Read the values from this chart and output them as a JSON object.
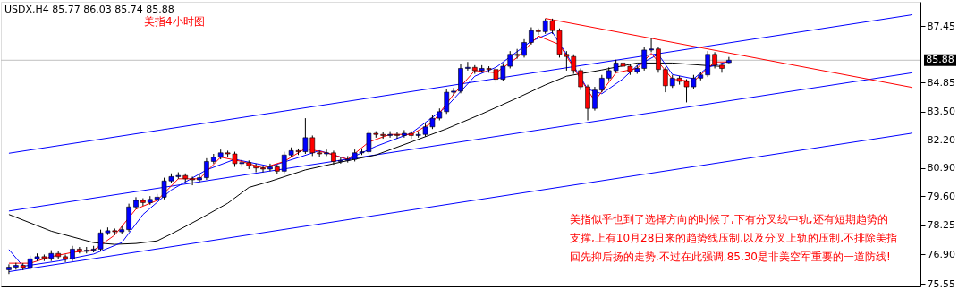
{
  "chart_data": {
    "type": "candlestick",
    "title": "USDX,H4  85.77 86.03 85.74 85.88",
    "subtitle": "美指4小时图",
    "annotations": [
      "美指似乎也到了选择方向的时候了,下有分叉线中轨,还有短期趋势的支撑,上有10月28日来的趋势线压制,以及分叉上轨的压制,不排除美指回先抑后扬的走势,不过在此强调,85.30是非美空军重要的一道防线!"
    ],
    "categories": [
      null,
      null,
      null,
      null,
      null,
      null,
      null,
      null,
      null,
      null,
      null,
      null,
      null,
      null,
      null,
      null,
      null,
      null,
      null,
      null,
      null,
      null,
      null,
      null,
      null,
      null,
      null,
      null,
      null,
      null,
      null,
      null,
      null,
      null,
      null,
      null,
      null,
      null,
      null,
      null,
      null,
      null,
      null,
      null,
      null,
      null,
      null,
      null,
      null,
      null,
      null,
      null,
      null,
      null,
      null,
      null,
      null,
      null,
      null,
      null,
      null,
      null,
      null,
      null,
      null,
      null,
      null,
      null,
      null,
      null,
      null,
      null,
      null,
      null,
      null,
      null,
      null,
      null,
      null,
      null,
      null,
      null,
      null,
      null,
      null,
      null,
      null,
      null,
      null,
      null,
      null,
      null,
      null,
      null,
      null,
      null,
      null,
      null,
      null,
      null,
      null,
      null,
      null,
      null,
      null,
      null,
      null,
      null,
      null,
      null,
      null,
      null,
      null,
      null,
      null,
      null,
      null,
      null,
      null,
      null,
      null,
      null,
      null,
      null,
      null,
      null,
      null,
      null,
      null
    ],
    "ohlc": [
      [
        76.2,
        76.45,
        76.0,
        76.32
      ],
      [
        76.32,
        76.52,
        76.2,
        76.4
      ],
      [
        76.4,
        76.5,
        76.18,
        76.3
      ],
      [
        76.3,
        76.85,
        76.2,
        76.7
      ],
      [
        76.7,
        76.95,
        76.6,
        76.8
      ],
      [
        76.8,
        76.9,
        76.6,
        76.72
      ],
      [
        76.72,
        77.1,
        76.6,
        76.95
      ],
      [
        76.95,
        77.05,
        76.7,
        76.8
      ],
      [
        76.8,
        76.9,
        76.55,
        76.7
      ],
      [
        76.7,
        77.3,
        76.6,
        77.15
      ],
      [
        77.15,
        77.25,
        76.95,
        77.05
      ],
      [
        77.05,
        77.25,
        76.95,
        77.1
      ],
      [
        77.1,
        77.3,
        77.0,
        77.15
      ],
      [
        77.15,
        78.05,
        77.05,
        77.9
      ],
      [
        77.9,
        78.15,
        77.8,
        78.0
      ],
      [
        78.0,
        78.1,
        77.8,
        77.95
      ],
      [
        77.95,
        78.2,
        77.85,
        78.05
      ],
      [
        78.05,
        79.25,
        77.95,
        79.1
      ],
      [
        79.1,
        79.55,
        79.0,
        79.4
      ],
      [
        79.4,
        79.5,
        79.15,
        79.3
      ],
      [
        79.3,
        79.6,
        79.2,
        79.45
      ],
      [
        79.45,
        79.7,
        79.35,
        79.55
      ],
      [
        79.55,
        80.45,
        79.45,
        80.3
      ],
      [
        80.3,
        80.65,
        80.2,
        80.5
      ],
      [
        80.5,
        80.7,
        80.4,
        80.55
      ],
      [
        80.55,
        80.65,
        80.25,
        80.4
      ],
      [
        80.4,
        80.5,
        80.1,
        80.35
      ],
      [
        80.35,
        80.6,
        80.25,
        80.45
      ],
      [
        80.45,
        81.35,
        80.35,
        81.2
      ],
      [
        81.2,
        81.55,
        81.1,
        81.4
      ],
      [
        81.4,
        81.75,
        81.3,
        81.6
      ],
      [
        81.6,
        81.7,
        81.4,
        81.55
      ],
      [
        81.55,
        81.65,
        80.95,
        81.1
      ],
      [
        81.1,
        81.3,
        80.95,
        81.15
      ],
      [
        81.15,
        81.25,
        80.85,
        81.0
      ],
      [
        81.0,
        81.1,
        80.7,
        80.9
      ],
      [
        80.9,
        81.0,
        80.7,
        80.85
      ],
      [
        80.85,
        81.1,
        80.75,
        80.95
      ],
      [
        80.95,
        81.05,
        80.6,
        80.75
      ],
      [
        80.75,
        81.65,
        80.65,
        81.5
      ],
      [
        81.5,
        81.85,
        81.4,
        81.7
      ],
      [
        81.7,
        81.8,
        81.5,
        81.65
      ],
      [
        81.65,
        83.2,
        81.55,
        82.3
      ],
      [
        82.3,
        82.4,
        81.45,
        81.6
      ],
      [
        81.6,
        81.7,
        81.4,
        81.55
      ],
      [
        81.55,
        81.75,
        81.45,
        81.6
      ],
      [
        81.6,
        81.7,
        81.05,
        81.2
      ],
      [
        81.2,
        81.4,
        81.1,
        81.25
      ],
      [
        81.25,
        81.45,
        81.15,
        81.3
      ],
      [
        81.3,
        81.75,
        81.2,
        81.6
      ],
      [
        81.6,
        81.8,
        81.5,
        81.65
      ],
      [
        81.65,
        82.65,
        81.55,
        82.5
      ],
      [
        82.5,
        82.6,
        82.3,
        82.45
      ],
      [
        82.45,
        82.55,
        82.25,
        82.4
      ],
      [
        82.4,
        82.6,
        82.3,
        82.45
      ],
      [
        82.45,
        82.55,
        82.25,
        82.4
      ],
      [
        82.4,
        82.65,
        82.3,
        82.5
      ],
      [
        82.5,
        82.6,
        82.25,
        82.4
      ],
      [
        82.4,
        82.6,
        82.3,
        82.45
      ],
      [
        82.45,
        82.95,
        82.35,
        82.8
      ],
      [
        82.8,
        83.35,
        82.7,
        83.2
      ],
      [
        83.2,
        83.65,
        83.1,
        83.5
      ],
      [
        83.5,
        84.55,
        83.4,
        84.4
      ],
      [
        84.4,
        84.6,
        84.25,
        84.45
      ],
      [
        84.45,
        85.7,
        84.35,
        85.5
      ],
      [
        85.5,
        85.8,
        85.4,
        85.55
      ],
      [
        85.55,
        85.65,
        85.25,
        85.4
      ],
      [
        85.4,
        85.65,
        85.3,
        85.5
      ],
      [
        85.5,
        85.6,
        85.3,
        85.45
      ],
      [
        85.45,
        85.55,
        84.85,
        85.0
      ],
      [
        85.0,
        85.75,
        84.9,
        85.6
      ],
      [
        85.6,
        86.3,
        85.5,
        86.15
      ],
      [
        86.15,
        86.4,
        85.95,
        86.1
      ],
      [
        86.1,
        86.85,
        86.0,
        86.7
      ],
      [
        86.7,
        87.4,
        86.6,
        87.25
      ],
      [
        87.25,
        87.35,
        87.05,
        87.2
      ],
      [
        87.2,
        87.8,
        87.1,
        87.7
      ],
      [
        87.7,
        87.8,
        87.1,
        87.25
      ],
      [
        87.25,
        87.35,
        86.0,
        86.15
      ],
      [
        86.15,
        86.3,
        85.4,
        86.05
      ],
      [
        86.05,
        86.15,
        85.25,
        85.4
      ],
      [
        85.4,
        85.5,
        84.5,
        84.65
      ],
      [
        84.65,
        84.75,
        83.1,
        83.65
      ],
      [
        83.65,
        84.65,
        83.55,
        84.5
      ],
      [
        84.5,
        85.2,
        84.4,
        85.05
      ],
      [
        85.05,
        85.55,
        84.95,
        85.4
      ],
      [
        85.4,
        85.9,
        85.3,
        85.75
      ],
      [
        85.75,
        85.85,
        85.45,
        85.6
      ],
      [
        85.6,
        85.7,
        85.2,
        85.35
      ],
      [
        85.35,
        85.65,
        85.25,
        85.5
      ],
      [
        85.5,
        86.5,
        85.4,
        86.35
      ],
      [
        86.35,
        86.88,
        86.25,
        86.4
      ],
      [
        86.4,
        86.5,
        85.3,
        85.45
      ],
      [
        85.45,
        85.55,
        84.4,
        84.7
      ],
      [
        84.7,
        85.2,
        84.6,
        85.05
      ],
      [
        85.05,
        85.15,
        84.75,
        84.9
      ],
      [
        84.9,
        85.0,
        83.93,
        84.65
      ],
      [
        84.65,
        85.2,
        84.55,
        85.05
      ],
      [
        85.05,
        85.35,
        84.95,
        85.2
      ],
      [
        85.2,
        86.3,
        85.1,
        86.15
      ],
      [
        86.15,
        86.25,
        85.5,
        85.65
      ],
      [
        85.65,
        85.75,
        85.3,
        85.5
      ],
      [
        85.77,
        86.03,
        85.74,
        85.88
      ],
      null,
      null,
      null,
      null,
      null,
      null,
      null,
      null,
      null,
      null,
      null,
      null,
      null,
      null,
      null,
      null,
      null,
      null,
      null,
      null,
      null,
      null,
      null,
      null,
      null,
      null
    ],
    "series": [
      {
        "type": "line",
        "color": "#0000ff",
        "values": [
          81.58,
          null,
          null,
          null,
          null,
          null,
          null,
          null,
          null,
          null,
          null,
          null,
          null,
          null,
          null,
          null,
          null,
          null,
          null,
          null,
          null,
          null,
          null,
          null,
          null,
          null,
          null,
          null,
          null,
          null,
          null,
          null,
          null,
          null,
          null,
          null,
          null,
          null,
          null,
          null,
          null,
          null,
          null,
          null,
          null,
          null,
          null,
          null,
          null,
          null,
          null,
          null,
          null,
          null,
          null,
          null,
          null,
          null,
          null,
          null,
          null,
          null,
          null,
          null,
          null,
          null,
          null,
          null,
          null,
          null,
          null,
          null,
          null,
          null,
          null,
          null,
          null,
          null,
          null,
          null,
          null,
          null,
          null,
          null,
          null,
          null,
          null,
          null,
          null,
          null,
          null,
          null,
          null,
          null,
          null,
          null,
          null,
          null,
          null,
          null,
          null,
          null,
          null,
          null,
          null,
          null,
          null,
          null,
          null,
          null,
          null,
          null,
          null,
          null,
          null,
          null,
          null,
          null,
          null,
          null,
          null,
          null,
          null,
          null,
          null,
          null,
          null,
          null,
          87.98
        ]
      },
      {
        "type": "line",
        "color": "#0000ff",
        "values": [
          78.91,
          null,
          null,
          null,
          null,
          null,
          null,
          null,
          null,
          null,
          null,
          null,
          null,
          null,
          null,
          null,
          null,
          null,
          null,
          null,
          null,
          null,
          null,
          null,
          null,
          null,
          null,
          null,
          null,
          null,
          null,
          null,
          null,
          null,
          null,
          null,
          null,
          null,
          null,
          null,
          null,
          null,
          null,
          null,
          null,
          null,
          null,
          null,
          null,
          null,
          null,
          null,
          null,
          null,
          null,
          null,
          null,
          null,
          null,
          null,
          null,
          null,
          null,
          null,
          null,
          null,
          null,
          null,
          null,
          null,
          null,
          null,
          null,
          null,
          null,
          null,
          null,
          null,
          null,
          null,
          null,
          null,
          null,
          null,
          null,
          null,
          null,
          null,
          null,
          null,
          null,
          null,
          null,
          null,
          null,
          null,
          null,
          null,
          null,
          null,
          null,
          null,
          null,
          null,
          null,
          null,
          null,
          null,
          null,
          null,
          null,
          null,
          null,
          null,
          null,
          null,
          null,
          null,
          null,
          null,
          null,
          null,
          null,
          null,
          null,
          null,
          null,
          null,
          85.3
        ]
      },
      {
        "type": "line",
        "color": "#0000ff",
        "values": [
          76.11,
          null,
          null,
          null,
          null,
          null,
          null,
          null,
          null,
          null,
          null,
          null,
          null,
          null,
          null,
          null,
          null,
          null,
          null,
          null,
          null,
          null,
          null,
          null,
          null,
          null,
          null,
          null,
          null,
          null,
          null,
          null,
          null,
          null,
          null,
          null,
          null,
          null,
          null,
          null,
          null,
          null,
          null,
          null,
          null,
          null,
          null,
          null,
          null,
          null,
          null,
          null,
          null,
          null,
          null,
          null,
          null,
          null,
          null,
          null,
          null,
          null,
          null,
          null,
          null,
          null,
          null,
          null,
          null,
          null,
          null,
          null,
          null,
          null,
          null,
          null,
          null,
          null,
          null,
          null,
          null,
          null,
          null,
          null,
          null,
          null,
          null,
          null,
          null,
          null,
          null,
          null,
          null,
          null,
          null,
          null,
          null,
          null,
          null,
          null,
          null,
          null,
          null,
          null,
          null,
          null,
          null,
          null,
          null,
          null,
          null,
          null,
          null,
          null,
          null,
          null,
          null,
          null,
          null,
          null,
          null,
          null,
          null,
          null,
          null,
          null,
          null,
          null,
          82.51
        ]
      },
      {
        "type": "line",
        "color": "#ff0000",
        "values": [
          null,
          null,
          null,
          null,
          null,
          null,
          null,
          null,
          null,
          null,
          null,
          null,
          null,
          null,
          null,
          null,
          null,
          null,
          null,
          null,
          null,
          null,
          null,
          null,
          null,
          null,
          null,
          null,
          null,
          null,
          null,
          null,
          null,
          null,
          null,
          null,
          null,
          null,
          null,
          null,
          null,
          null,
          null,
          null,
          null,
          null,
          null,
          null,
          null,
          null,
          null,
          null,
          null,
          null,
          null,
          null,
          null,
          null,
          null,
          null,
          null,
          null,
          null,
          null,
          null,
          null,
          null,
          null,
          null,
          null,
          null,
          null,
          null,
          null,
          null,
          null,
          87.81,
          null,
          null,
          null,
          null,
          null,
          null,
          null,
          null,
          null,
          null,
          null,
          null,
          null,
          null,
          null,
          null,
          null,
          null,
          null,
          null,
          null,
          null,
          null,
          null,
          null,
          null,
          null,
          null,
          null,
          null,
          null,
          null,
          null,
          null,
          null,
          null,
          null,
          null,
          null,
          null,
          null,
          null,
          null,
          null,
          null,
          null,
          null,
          null,
          null,
          null,
          null,
          84.62
        ]
      },
      {
        "type": "line",
        "color": "#000000",
        "values": [
          78.75,
          null,
          null,
          null,
          null,
          null,
          77.98,
          null,
          null,
          null,
          null,
          null,
          77.45,
          null,
          null,
          77.37,
          null,
          null,
          77.41,
          null,
          null,
          77.53,
          null,
          77.85,
          null,
          null,
          null,
          78.54,
          null,
          null,
          null,
          79.27,
          null,
          null,
          80.0,
          null,
          null,
          80.28,
          null,
          null,
          null,
          null,
          80.81,
          null,
          null,
          null,
          null,
          81.17,
          null,
          null,
          null,
          null,
          81.5,
          null,
          null,
          null,
          null,
          82.1,
          null,
          null,
          null,
          null,
          82.71,
          null,
          null,
          null,
          null,
          83.4,
          null,
          null,
          null,
          null,
          84.13,
          null,
          null,
          null,
          84.74,
          null,
          null,
          85.14,
          null,
          null,
          null,
          null,
          85.43,
          null,
          null,
          null,
          null,
          85.75,
          null,
          null,
          null,
          null,
          85.75,
          null,
          null,
          null,
          null,
          85.63,
          null,
          85.59,
          null,
          null,
          null,
          null,
          null,
          null,
          null,
          null,
          null,
          null,
          null,
          null,
          null,
          null,
          null,
          null,
          null,
          null,
          null,
          null,
          null,
          null,
          null,
          null,
          null,
          null,
          null
        ]
      },
      {
        "type": "line",
        "color": "#0000ff",
        "values": [
          77.13,
          null,
          76.36,
          null,
          null,
          null,
          null,
          76.6,
          null,
          null,
          null,
          null,
          76.92,
          null,
          null,
          null,
          77.45,
          null,
          null,
          78.75,
          null,
          null,
          null,
          79.88,
          null,
          null,
          null,
          null,
          80.81,
          null,
          null,
          null,
          81.3,
          null,
          null,
          null,
          null,
          80.97,
          null,
          null,
          null,
          81.38,
          null,
          null,
          81.7,
          null,
          null,
          null,
          81.3,
          null,
          null,
          null,
          81.9,
          null,
          null,
          null,
          null,
          82.51,
          null,
          null,
          null,
          null,
          83.73,
          null,
          null,
          null,
          85.14,
          null,
          null,
          85.55,
          null,
          null,
          null,
          null,
          86.76,
          null,
          null,
          87.17,
          null,
          86.15,
          null,
          null,
          84.54,
          null,
          84.33,
          null,
          null,
          85.02,
          null,
          85.63,
          null,
          null,
          86.15,
          null,
          85.22,
          null,
          null,
          85.02,
          null,
          85.55,
          null,
          null,
          85.83,
          null,
          null,
          null,
          null,
          null,
          null,
          null,
          null,
          null,
          null,
          null,
          null,
          null,
          null,
          null,
          null,
          null,
          null,
          null,
          null,
          null,
          null,
          null,
          null,
          null,
          null
        ]
      },
      {
        "type": "line",
        "color": "#ff0000",
        "values": [
          76.5,
          null,
          null,
          76.5,
          null,
          null,
          76.8,
          null,
          null,
          77.0,
          null,
          null,
          77.1,
          null,
          null,
          77.8,
          null,
          null,
          79.0,
          null,
          null,
          79.4,
          null,
          null,
          80.4,
          null,
          null,
          80.4,
          null,
          null,
          81.4,
          null,
          null,
          81.2,
          null,
          null,
          80.9,
          null,
          null,
          81.2,
          null,
          null,
          81.8,
          null,
          null,
          81.6,
          null,
          null,
          81.3,
          null,
          null,
          82.1,
          null,
          null,
          82.45,
          null,
          null,
          82.45,
          null,
          null,
          83.0,
          null,
          null,
          84.3,
          null,
          null,
          85.4,
          null,
          null,
          85.3,
          null,
          null,
          86.0,
          null,
          null,
          87.0,
          null,
          null,
          86.6,
          null,
          null,
          85.0,
          null,
          84.0,
          null,
          null,
          85.3,
          null,
          null,
          85.5,
          null,
          86.2,
          null,
          null,
          85.0,
          null,
          null,
          84.9,
          null,
          null,
          85.8,
          null,
          85.8,
          null,
          null,
          null,
          null,
          null,
          null,
          null,
          null,
          null,
          null,
          null,
          null,
          null,
          null,
          null,
          null,
          null,
          null,
          null,
          null,
          null,
          null,
          null,
          null,
          null,
          null
        ]
      }
    ],
    "ref_lines": [
      {
        "axis": "y",
        "value": 85.88,
        "label": "85.88",
        "color": "#c0c0c0"
      }
    ],
    "ylim": [
      75.43,
      88.58
    ],
    "yticks": [
      {
        "value": 75.55,
        "label": "75.55"
      },
      {
        "value": 76.9,
        "label": "76.90"
      },
      {
        "value": 78.25,
        "label": "78.25"
      },
      {
        "value": 79.6,
        "label": "79.60"
      },
      {
        "value": 80.9,
        "label": "80.90"
      },
      {
        "value": 82.2,
        "label": "82.20"
      },
      {
        "value": 83.5,
        "label": "83.50"
      },
      {
        "value": 84.85,
        "label": "84.85"
      },
      {
        "value": 86.15,
        "label": null
      },
      {
        "value": 87.45,
        "label": "87.45"
      }
    ],
    "tick_labels": "y",
    "grid": false
  }
}
